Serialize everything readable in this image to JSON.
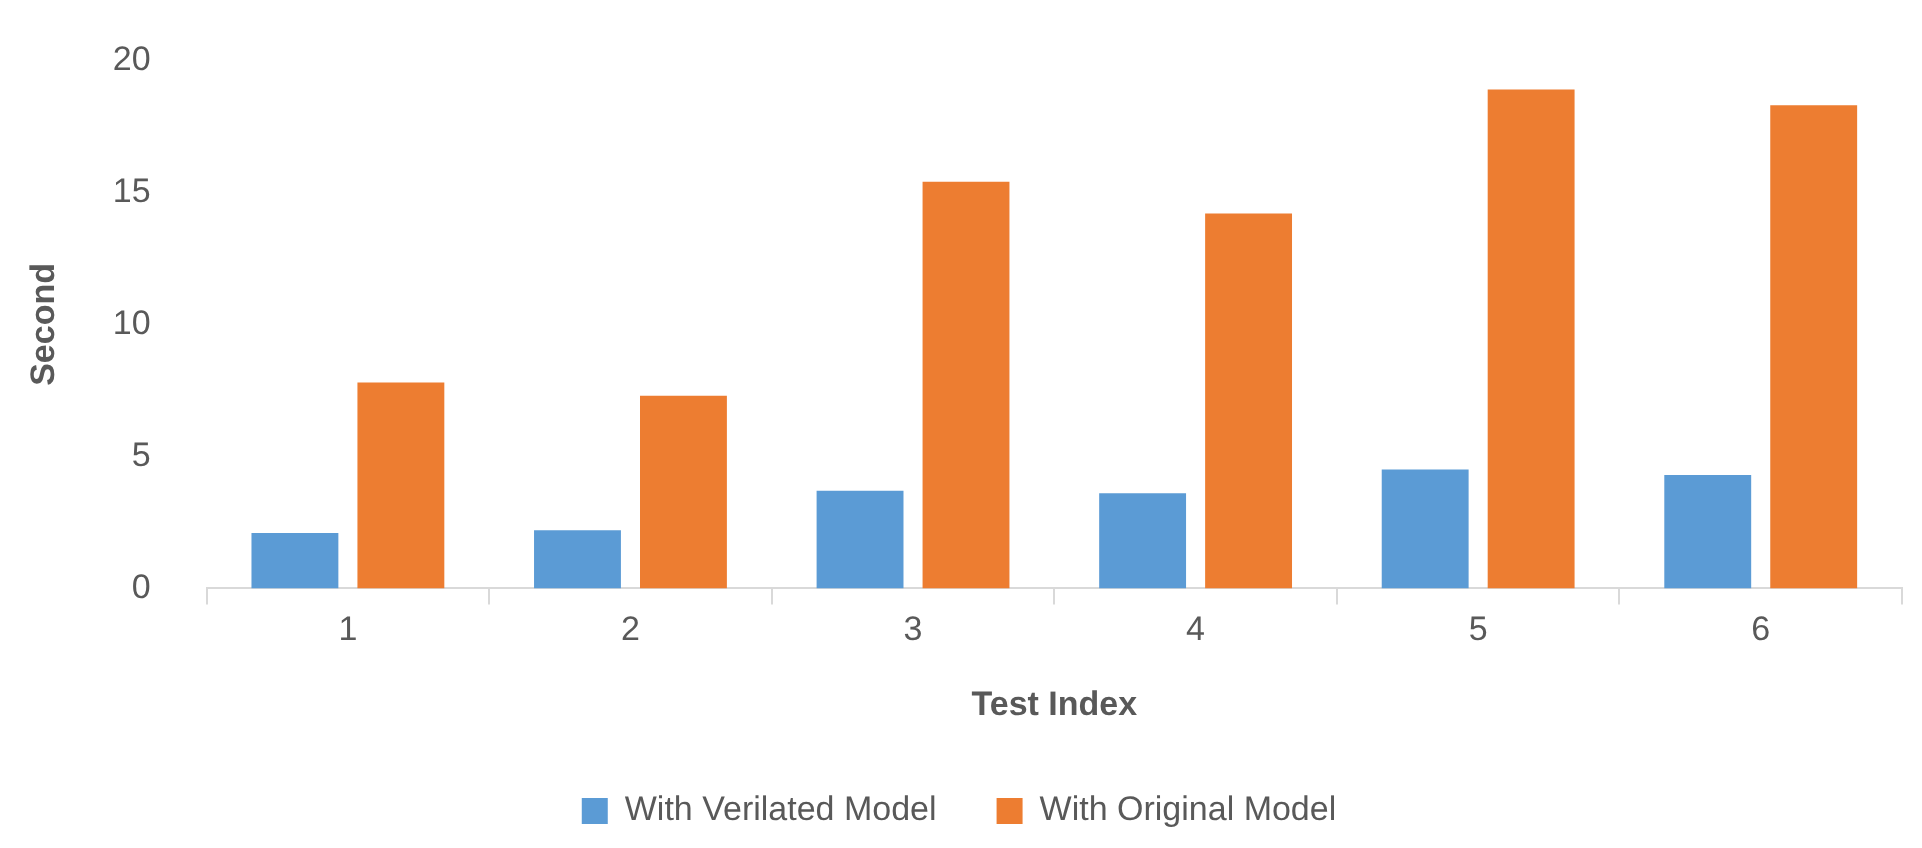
{
  "chart_data": {
    "type": "bar",
    "xlabel": "Test Index",
    "ylabel": "Second",
    "categories": [
      "1",
      "2",
      "3",
      "4",
      "5",
      "6"
    ],
    "series": [
      {
        "name": "With Verilated Model",
        "color": "#5b9bd5",
        "values": [
          2.1,
          2.2,
          3.7,
          3.6,
          4.5,
          4.3
        ]
      },
      {
        "name": "With Original Model",
        "color": "#ed7d31",
        "values": [
          7.8,
          7.3,
          15.4,
          14.2,
          18.9,
          18.3
        ]
      }
    ],
    "ylim": [
      0,
      20
    ],
    "yticks": [
      0,
      5,
      10,
      15,
      20
    ],
    "grid": false,
    "legend": "bottom"
  }
}
